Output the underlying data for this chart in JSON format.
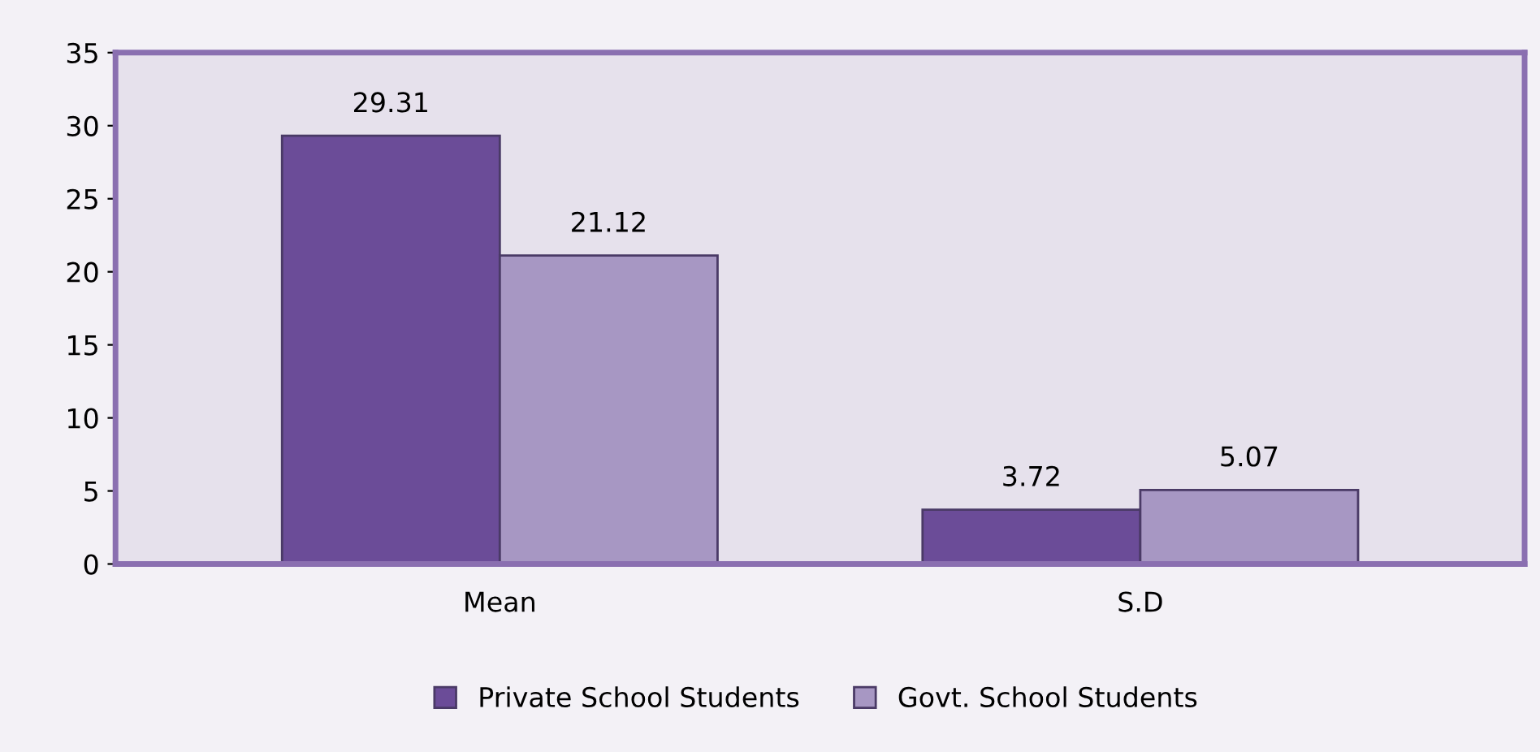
{
  "chart_data": {
    "type": "bar",
    "categories": [
      "Mean",
      "S.D"
    ],
    "series": [
      {
        "name": "Private School Students",
        "color": "#6b4c98",
        "values": [
          29.31,
          3.72
        ]
      },
      {
        "name": "Govt. School Students",
        "color": "#a797c3",
        "values": [
          21.12,
          5.07
        ]
      }
    ],
    "ylim": [
      0,
      35
    ],
    "yticks": [
      0,
      5,
      10,
      15,
      20,
      25,
      30,
      35
    ],
    "grid": false,
    "legend": "bottom",
    "data_labels": true
  }
}
